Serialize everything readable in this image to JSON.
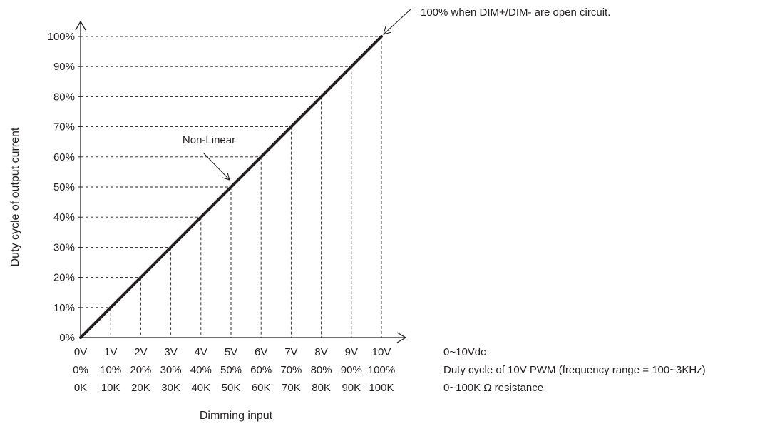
{
  "chart_data": {
    "type": "line",
    "xlabel": "Dimming input",
    "ylabel": "Duty cycle of output current",
    "x_tick_rows": [
      [
        "0V",
        "1V",
        "2V",
        "3V",
        "4V",
        "5V",
        "6V",
        "7V",
        "8V",
        "9V",
        "10V"
      ],
      [
        "0%",
        "10%",
        "20%",
        "30%",
        "40%",
        "50%",
        "60%",
        "70%",
        "80%",
        "90%",
        "100%"
      ],
      [
        "0K",
        "10K",
        "20K",
        "30K",
        "40K",
        "50K",
        "60K",
        "70K",
        "80K",
        "90K",
        "100K"
      ]
    ],
    "y_ticks": [
      "0%",
      "10%",
      "20%",
      "30%",
      "40%",
      "50%",
      "60%",
      "70%",
      "80%",
      "90%",
      "100%"
    ],
    "xlim": [
      0,
      10
    ],
    "ylim": [
      0,
      100
    ],
    "series": [
      {
        "x": [
          0,
          10
        ],
        "y": [
          0,
          100
        ]
      }
    ],
    "grid": "dashed guide lines to each tick",
    "annotations": [
      {
        "text": "100% when DIM+/DIM- are open circuit.",
        "target": {
          "x": 10,
          "y": 100
        }
      },
      {
        "text": "Non-Linear",
        "target": {
          "x": 5,
          "y": 50
        }
      }
    ],
    "x_row_descriptions": [
      "0~10Vdc",
      "Duty cycle of 10V PWM (frequency range = 100~3KHz)",
      "0~100K Ω resistance"
    ]
  },
  "colors": {
    "line": "#231f20",
    "axis": "#231f20",
    "guide": "#231f20"
  }
}
